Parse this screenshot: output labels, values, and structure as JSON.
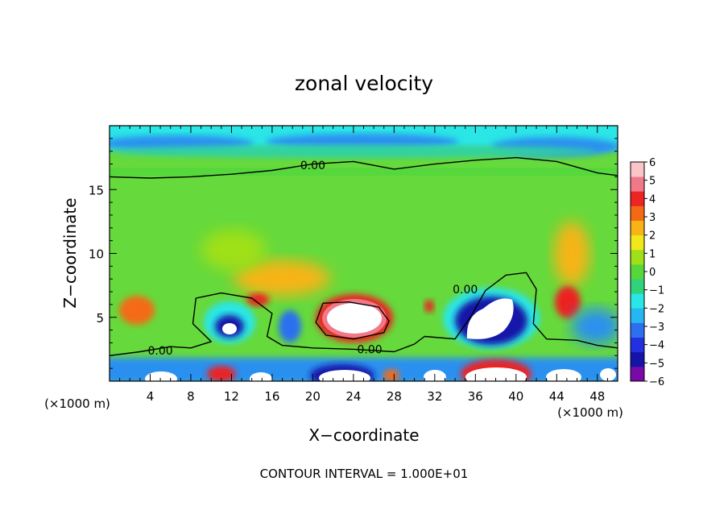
{
  "chart_data": {
    "type": "heatmap",
    "title": "zonal velocity",
    "xlabel": "X−coordinate",
    "ylabel": "Z−coordinate",
    "x_unit_left": "(×1000 m)",
    "x_unit_right": "(×1000 m)",
    "footer": "CONTOUR INTERVAL = 1.000E+01",
    "xlim": [
      0,
      50
    ],
    "ylim": [
      0,
      20
    ],
    "x_ticks": [
      4,
      8,
      12,
      16,
      20,
      24,
      28,
      32,
      36,
      40,
      44,
      48
    ],
    "x_tick_labels": [
      "4",
      "8",
      "12",
      "16",
      "20",
      "24",
      "28",
      "32",
      "36",
      "40",
      "44",
      "48"
    ],
    "y_ticks": [
      5,
      10,
      15
    ],
    "y_tick_labels": [
      "5",
      "10",
      "15"
    ],
    "colorbar": {
      "min": -6,
      "max": 6,
      "tick_labels": [
        "6",
        "5",
        "4",
        "3",
        "2",
        "1",
        "0",
        "−1",
        "−2",
        "−3",
        "−4",
        "−5",
        "−6"
      ],
      "colors": [
        "#7a0aa8",
        "#1414a8",
        "#2230e0",
        "#2c70f0",
        "#26b6f4",
        "#2ae6e6",
        "#30d27a",
        "#56d83c",
        "#a0e018",
        "#f0e81a",
        "#f8b414",
        "#f46a14",
        "#ec2424",
        "#f07888",
        "#fac4c8"
      ]
    },
    "contour_labels": [
      {
        "text": "0.00",
        "x": 20,
        "y": 16.9
      },
      {
        "text": "0.00",
        "x": 5,
        "y": 2.4
      },
      {
        "text": "0.00",
        "x": 25.6,
        "y": 2.5
      },
      {
        "text": "0.00",
        "x": 35,
        "y": 7.2
      }
    ],
    "zero_contours": [
      [
        [
          0,
          16
        ],
        [
          4,
          15.9
        ],
        [
          8,
          16
        ],
        [
          12,
          16.2
        ],
        [
          16,
          16.5
        ],
        [
          20,
          17
        ],
        [
          24,
          17.2
        ],
        [
          28,
          16.6
        ],
        [
          32,
          17
        ],
        [
          36,
          17.3
        ],
        [
          40,
          17.5
        ],
        [
          44,
          17.2
        ],
        [
          48,
          16.3
        ],
        [
          50,
          16.1
        ]
      ],
      [
        [
          0,
          2
        ],
        [
          3,
          2.3
        ],
        [
          6,
          2.7
        ],
        [
          8,
          2.6
        ],
        [
          10,
          3.1
        ],
        [
          8.2,
          4.5
        ],
        [
          8.5,
          6.5
        ],
        [
          11,
          6.9
        ],
        [
          14,
          6.5
        ],
        [
          16,
          5.3
        ],
        [
          15.5,
          3.5
        ],
        [
          17,
          2.8
        ],
        [
          20,
          2.6
        ],
        [
          24,
          2.5
        ],
        [
          28,
          2.3
        ],
        [
          30,
          2.9
        ],
        [
          31,
          3.5
        ],
        [
          34,
          3.3
        ],
        [
          35.5,
          5
        ],
        [
          37,
          7.1
        ],
        [
          39,
          8.3
        ],
        [
          41,
          8.5
        ],
        [
          42,
          7.2
        ],
        [
          41.7,
          4.5
        ],
        [
          43,
          3.3
        ],
        [
          46,
          3.2
        ],
        [
          48,
          2.8
        ],
        [
          50,
          2.6
        ]
      ],
      [
        [
          21,
          6.1
        ],
        [
          23.5,
          6.2
        ],
        [
          26.5,
          5.8
        ],
        [
          27.5,
          4.7
        ],
        [
          27,
          3.8
        ],
        [
          24,
          3.3
        ],
        [
          21.3,
          3.6
        ],
        [
          20.3,
          4.6
        ],
        [
          21,
          6.1
        ]
      ]
    ],
    "grid": false,
    "legend": "colorbar right"
  }
}
